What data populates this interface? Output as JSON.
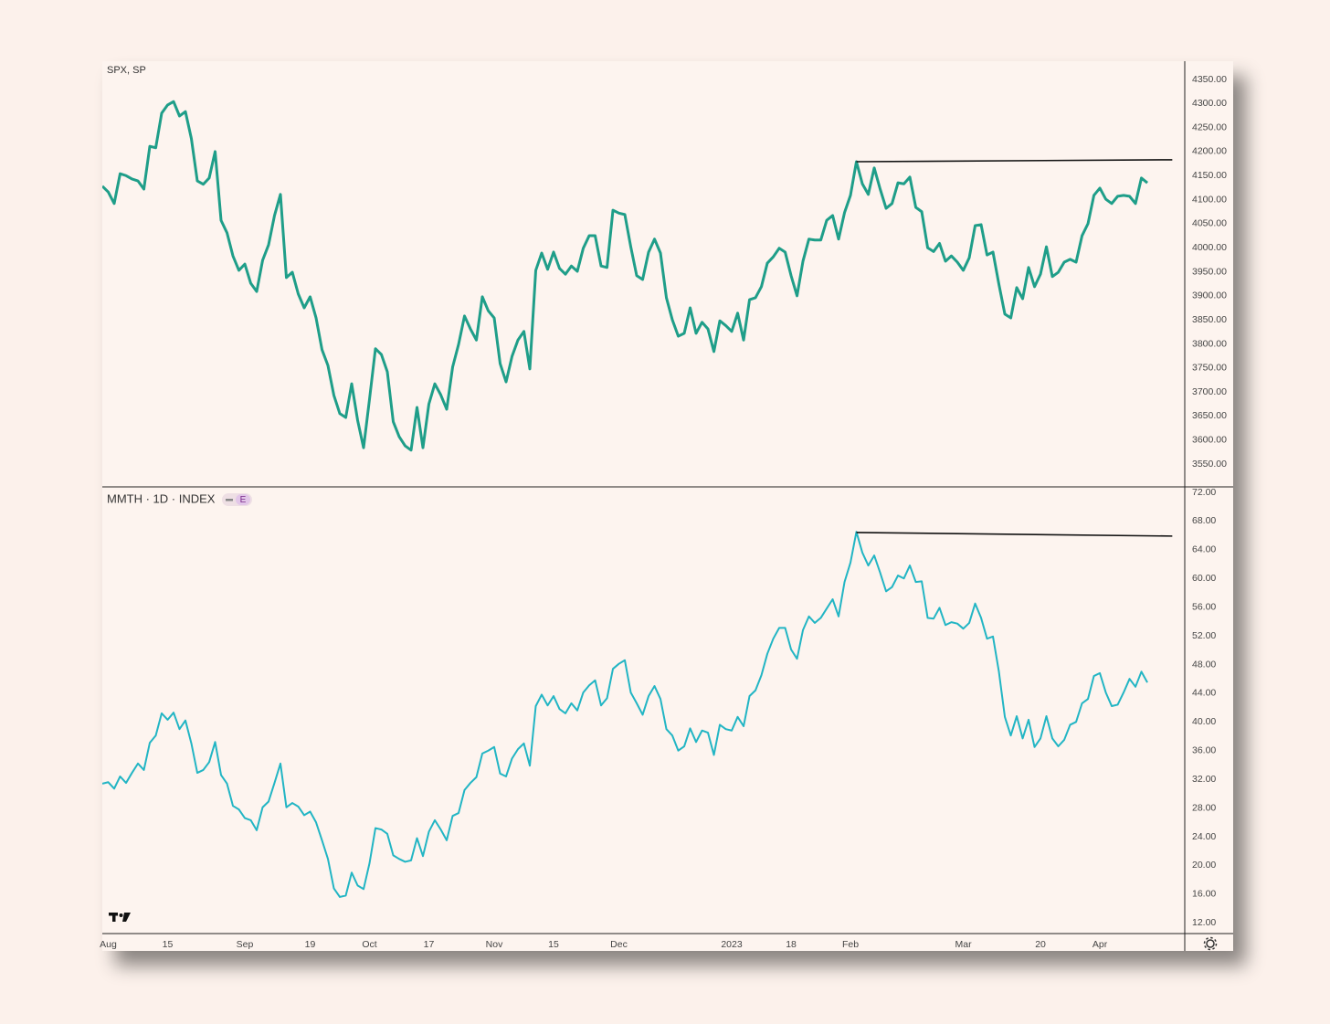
{
  "chart_data": [
    {
      "type": "line",
      "title": "SPX, SP",
      "color": "#1f9e89",
      "x": [
        0,
        1,
        2,
        3,
        4,
        5,
        6,
        7,
        8,
        9,
        10,
        11,
        12,
        13,
        14,
        15,
        16,
        17,
        18,
        19,
        20,
        21,
        22,
        23,
        24,
        25,
        26,
        27,
        28,
        29,
        30,
        31,
        32,
        33,
        34,
        35,
        36,
        37,
        38,
        39,
        40,
        41,
        42,
        43,
        44,
        45,
        46,
        47,
        48,
        49,
        50,
        51,
        52,
        53,
        54,
        55,
        56,
        57,
        58,
        59,
        60,
        61,
        62,
        63,
        64,
        65,
        66,
        67,
        68,
        69,
        70,
        71,
        72,
        73,
        74,
        75,
        76,
        77,
        78,
        79,
        80,
        81,
        82,
        83,
        84,
        85,
        86,
        87,
        88,
        89,
        90,
        91,
        92,
        93,
        94,
        95,
        96,
        97,
        98,
        99,
        100,
        101,
        102,
        103,
        104,
        105,
        106,
        107,
        108,
        109,
        110,
        111,
        112,
        113,
        114,
        115,
        116,
        117,
        118,
        119,
        120,
        121,
        122,
        123,
        124,
        125,
        126,
        127,
        128,
        129,
        130,
        131,
        132,
        133,
        134,
        135,
        136,
        137,
        138,
        139,
        140,
        141,
        142,
        143,
        144,
        145,
        146,
        147,
        148,
        149,
        150,
        151,
        152,
        153,
        154,
        155,
        156,
        157,
        158,
        159,
        160,
        161,
        162,
        163,
        164,
        165,
        166,
        167,
        168,
        169,
        170,
        171,
        172,
        173,
        174,
        175,
        176
      ],
      "values": [
        4128,
        4116,
        4092,
        4154,
        4150,
        4143,
        4139,
        4122,
        4211,
        4208,
        4280,
        4297,
        4304,
        4274,
        4283,
        4227,
        4139,
        4132,
        4145,
        4200,
        4057,
        4031,
        3983,
        3953,
        3966,
        3926,
        3909,
        3974,
        4006,
        4067,
        4111,
        3938,
        3949,
        3904,
        3875,
        3898,
        3854,
        3788,
        3755,
        3693,
        3655,
        3647,
        3717,
        3641,
        3584,
        3685,
        3790,
        3778,
        3742,
        3638,
        3607,
        3588,
        3579,
        3668,
        3584,
        3675,
        3717,
        3694,
        3664,
        3752,
        3799,
        3858,
        3831,
        3808,
        3898,
        3869,
        3854,
        3759,
        3721,
        3774,
        3808,
        3826,
        3748,
        3953,
        3989,
        3955,
        3991,
        3957,
        3945,
        3962,
        3951,
        3999,
        4025,
        4025,
        3962,
        3959,
        4078,
        4072,
        4069,
        4002,
        3942,
        3934,
        3991,
        4018,
        3989,
        3896,
        3850,
        3816,
        3822,
        3875,
        3822,
        3845,
        3831,
        3784,
        3848,
        3838,
        3826,
        3864,
        3808,
        3892,
        3896,
        3919,
        3968,
        3981,
        3999,
        3991,
        3942,
        3900,
        3972,
        4018,
        4016,
        4016,
        4057,
        4067,
        4018,
        4073,
        4109,
        4179,
        4133,
        4111,
        4166,
        4122,
        4082,
        4092,
        4135,
        4133,
        4147,
        4084,
        4075,
        4000,
        3992,
        4009,
        3972,
        3983,
        3970,
        3953,
        3979,
        4046,
        4048,
        3985,
        3991,
        3924,
        3862,
        3854,
        3917,
        3894,
        3959,
        3919,
        3945,
        4002,
        3940,
        3949,
        3970,
        3976,
        3970,
        4025,
        4050,
        4109,
        4124,
        4101,
        4092,
        4107,
        4109,
        4107,
        4092,
        4145,
        4135
      ],
      "trendline": {
        "x": [
          127,
          180.2
        ],
        "values": [
          4179,
          4183
        ]
      },
      "xlim": [
        0,
        182.3
      ],
      "ylim": [
        3502.6,
        4388
      ],
      "yticks": [
        {
          "value": 3550,
          "label": "3550.00"
        },
        {
          "value": 3600,
          "label": "3600.00"
        },
        {
          "value": 3650,
          "label": "3650.00"
        },
        {
          "value": 3700,
          "label": "3700.00"
        },
        {
          "value": 3750,
          "label": "3750.00"
        },
        {
          "value": 3800,
          "label": "3800.00"
        },
        {
          "value": 3850,
          "label": "3850.00"
        },
        {
          "value": 3900,
          "label": "3900.00"
        },
        {
          "value": 3950,
          "label": "3950.00"
        },
        {
          "value": 4000,
          "label": "4000.00"
        },
        {
          "value": 4050,
          "label": "4050.00"
        },
        {
          "value": 4100,
          "label": "4100.00"
        },
        {
          "value": 4150,
          "label": "4150.00"
        },
        {
          "value": 4200,
          "label": "4200.00"
        },
        {
          "value": 4250,
          "label": "4250.00"
        },
        {
          "value": 4300,
          "label": "4300.00"
        },
        {
          "value": 4350,
          "label": "4350.00"
        }
      ]
    },
    {
      "type": "line",
      "title": "MMTH · 1D · INDEX",
      "badge": "E",
      "color": "#22b5c4",
      "x": [
        0,
        1,
        2,
        3,
        4,
        5,
        6,
        7,
        8,
        9,
        10,
        11,
        12,
        13,
        14,
        15,
        16,
        17,
        18,
        19,
        20,
        21,
        22,
        23,
        24,
        25,
        26,
        27,
        28,
        29,
        30,
        31,
        32,
        33,
        34,
        35,
        36,
        37,
        38,
        39,
        40,
        41,
        42,
        43,
        44,
        45,
        46,
        47,
        48,
        49,
        50,
        51,
        52,
        53,
        54,
        55,
        56,
        57,
        58,
        59,
        60,
        61,
        62,
        63,
        64,
        65,
        66,
        67,
        68,
        69,
        70,
        71,
        72,
        73,
        74,
        75,
        76,
        77,
        78,
        79,
        80,
        81,
        82,
        83,
        84,
        85,
        86,
        87,
        88,
        89,
        90,
        91,
        92,
        93,
        94,
        95,
        96,
        97,
        98,
        99,
        100,
        101,
        102,
        103,
        104,
        105,
        106,
        107,
        108,
        109,
        110,
        111,
        112,
        113,
        114,
        115,
        116,
        117,
        118,
        119,
        120,
        121,
        122,
        123,
        124,
        125,
        126,
        127,
        128,
        129,
        130,
        131,
        132,
        133,
        134,
        135,
        136,
        137,
        138,
        139,
        140,
        141,
        142,
        143,
        144,
        145,
        146,
        147,
        148,
        149,
        150,
        151,
        152,
        153,
        154,
        155,
        156,
        157,
        158,
        159,
        160,
        161,
        162,
        163,
        164,
        165,
        166,
        167,
        168,
        169,
        170,
        171,
        172,
        173,
        174,
        175,
        176
      ],
      "values": [
        31.4,
        31.6,
        30.7,
        32.4,
        31.5,
        32.9,
        34.2,
        33.3,
        37.1,
        38.1,
        41.2,
        40.3,
        41.3,
        39.0,
        40.2,
        37.0,
        32.9,
        33.3,
        34.4,
        37.2,
        32.6,
        31.4,
        28.3,
        27.8,
        26.6,
        26.3,
        24.9,
        28.1,
        28.9,
        31.5,
        34.2,
        28.1,
        28.7,
        28.2,
        27.0,
        27.5,
        26.0,
        23.5,
        20.9,
        16.8,
        15.6,
        15.8,
        19.0,
        17.2,
        16.7,
        20.3,
        25.2,
        25.0,
        24.4,
        21.4,
        20.9,
        20.5,
        20.7,
        23.8,
        21.3,
        24.7,
        26.3,
        25.0,
        23.5,
        26.9,
        27.3,
        30.5,
        31.5,
        32.3,
        35.6,
        36.0,
        36.5,
        32.8,
        32.4,
        34.9,
        36.2,
        37.0,
        33.9,
        42.2,
        43.8,
        42.3,
        43.6,
        41.8,
        41.2,
        42.6,
        41.6,
        44.1,
        45.1,
        45.8,
        42.3,
        43.3,
        47.4,
        48.1,
        48.6,
        44.1,
        42.6,
        41.0,
        43.6,
        45.0,
        43.2,
        39.0,
        38.1,
        36.0,
        36.6,
        39.1,
        37.2,
        38.8,
        38.5,
        35.4,
        39.6,
        39.0,
        38.8,
        40.7,
        39.4,
        43.6,
        44.4,
        46.5,
        49.5,
        51.6,
        53.1,
        53.1,
        50.1,
        48.8,
        52.8,
        54.7,
        53.8,
        54.5,
        55.8,
        57.1,
        54.7,
        59.5,
        62.2,
        66.5,
        63.6,
        61.8,
        63.2,
        60.8,
        58.2,
        58.8,
        60.4,
        60.0,
        61.8,
        59.5,
        59.6,
        54.5,
        54.4,
        55.9,
        53.5,
        53.9,
        53.7,
        53.0,
        53.8,
        56.5,
        54.5,
        51.6,
        51.9,
        47.0,
        40.7,
        38.1,
        40.8,
        37.7,
        40.3,
        36.5,
        37.7,
        40.8,
        37.7,
        36.6,
        37.5,
        39.6,
        40.0,
        42.6,
        43.2,
        46.4,
        46.8,
        44.1,
        42.2,
        42.4,
        44.1,
        46.0,
        44.9,
        47.0,
        45.5
      ],
      "trendline": {
        "x": [
          127,
          180.2
        ],
        "values": [
          66.4,
          65.9
        ]
      },
      "xlim": [
        0,
        182.3
      ],
      "ylim": [
        10.5,
        72.76
      ],
      "yticks": [
        {
          "value": 12,
          "label": "12.00"
        },
        {
          "value": 16,
          "label": "16.00"
        },
        {
          "value": 20,
          "label": "20.00"
        },
        {
          "value": 24,
          "label": "24.00"
        },
        {
          "value": 28,
          "label": "28.00"
        },
        {
          "value": 32,
          "label": "32.00"
        },
        {
          "value": 36,
          "label": "36.00"
        },
        {
          "value": 40,
          "label": "40.00"
        },
        {
          "value": 44,
          "label": "44.00"
        },
        {
          "value": 48,
          "label": "48.00"
        },
        {
          "value": 52,
          "label": "52.00"
        },
        {
          "value": 56,
          "label": "56.00"
        },
        {
          "value": 60,
          "label": "60.00"
        },
        {
          "value": 64,
          "label": "64.00"
        },
        {
          "value": 68,
          "label": "68.00"
        },
        {
          "value": 72,
          "label": "72.00"
        }
      ],
      "xticks": [
        {
          "value": 1,
          "label": "Aug"
        },
        {
          "value": 11,
          "label": "15"
        },
        {
          "value": 24,
          "label": "Sep"
        },
        {
          "value": 35,
          "label": "19"
        },
        {
          "value": 45,
          "label": "Oct"
        },
        {
          "value": 55,
          "label": "17"
        },
        {
          "value": 66,
          "label": "Nov"
        },
        {
          "value": 76,
          "label": "15"
        },
        {
          "value": 87,
          "label": "Dec"
        },
        {
          "value": 106,
          "label": "2023"
        },
        {
          "value": 116,
          "label": "18"
        },
        {
          "value": 126,
          "label": "Feb"
        },
        {
          "value": 145,
          "label": "Mar"
        },
        {
          "value": 158,
          "label": "20"
        },
        {
          "value": 168,
          "label": "Apr"
        }
      ]
    }
  ]
}
